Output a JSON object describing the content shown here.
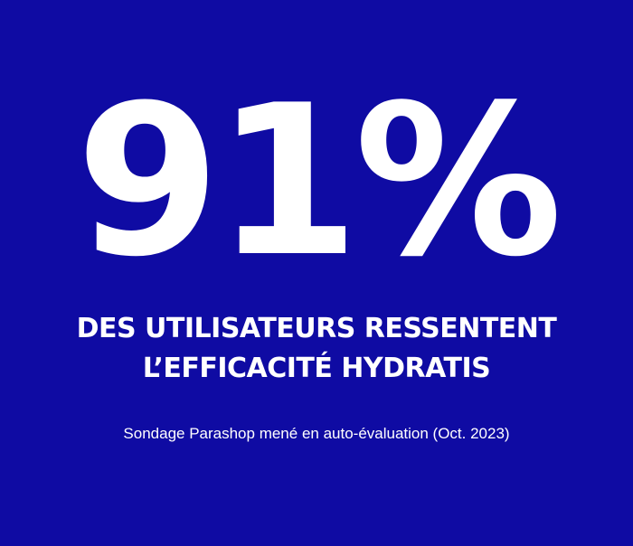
{
  "stat": "91%",
  "headline": [
    "DES UTILISATEURS RESSENTENT",
    "L’EFFICACITÉ HYDRATIS"
  ],
  "note": "Sondage Parashop mené en auto-évaluation (Oct. 2023)"
}
